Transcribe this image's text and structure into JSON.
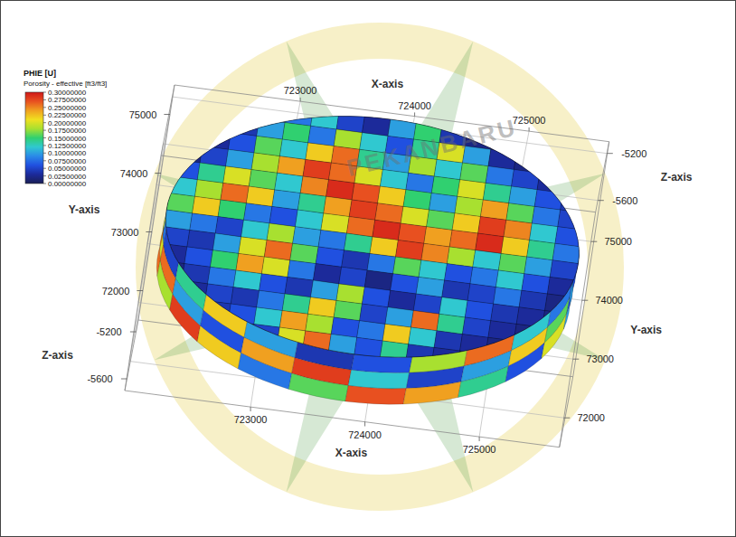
{
  "chart_data": {
    "type": "3d_grid",
    "title": "PHIE [U]",
    "subtitle": "Porosity - effective [ft3/ft3]",
    "x_label": "X-axis",
    "y_label": "Y-axis",
    "z_label": "Z-axis",
    "xlim": [
      721900,
      725700
    ],
    "xticks": [
      723000,
      724000,
      725000
    ],
    "ylim": [
      71500,
      75500
    ],
    "yticks": [
      72000,
      73000,
      74000,
      75000
    ],
    "zlim": [
      -5700,
      -5100
    ],
    "zticks": [
      -5600,
      -5200
    ],
    "grid": true,
    "watermark": "PEKANBARU",
    "colorbar": {
      "range": [
        0,
        0.3
      ],
      "ticks": [
        {
          "value": 0.3,
          "label": "0.30000000"
        },
        {
          "value": 0.275,
          "label": "0.27500000"
        },
        {
          "value": 0.25,
          "label": "0.25000000"
        },
        {
          "value": 0.225,
          "label": "0.22500000"
        },
        {
          "value": 0.2,
          "label": "0.20000000"
        },
        {
          "value": 0.175,
          "label": "0.17500000"
        },
        {
          "value": 0.15,
          "label": "0.15000000"
        },
        {
          "value": 0.125,
          "label": "0.12500000"
        },
        {
          "value": 0.1,
          "label": "0.10000000"
        },
        {
          "value": 0.075,
          "label": "0.07500000"
        },
        {
          "value": 0.05,
          "label": "0.05000000"
        },
        {
          "value": 0.025,
          "label": "0.02500000"
        },
        {
          "value": 0,
          "label": "0.00000000"
        }
      ],
      "colors": [
        "#1a1f55",
        "#1c2a9a",
        "#2050e0",
        "#2a8ae8",
        "#30c8d0",
        "#30d070",
        "#a8e030",
        "#f0e020",
        "#f0a020",
        "#e85020",
        "#d01818"
      ]
    },
    "grid_extent": {
      "x": [
        722000,
        725600
      ],
      "y": [
        71600,
        75600
      ]
    },
    "body_z": [
      -5600,
      -5200
    ],
    "cells": [
      [
        null,
        null,
        null,
        null,
        0.08,
        0.12,
        0.05,
        0.03,
        0.1,
        0.15,
        0.04,
        0.02,
        null,
        null,
        null,
        null
      ],
      [
        null,
        null,
        0.04,
        0.1,
        0.15,
        0.08,
        0.18,
        0.12,
        0.06,
        0.14,
        0.2,
        0.1,
        0.03,
        0.02,
        null,
        null
      ],
      [
        null,
        0.03,
        0.06,
        0.16,
        0.12,
        0.22,
        0.26,
        0.14,
        0.1,
        0.18,
        0.12,
        0.16,
        0.08,
        0.05,
        0.03,
        null
      ],
      [
        0.02,
        0.05,
        0.1,
        0.18,
        0.24,
        0.28,
        0.26,
        0.2,
        0.12,
        0.08,
        0.15,
        0.2,
        0.14,
        0.1,
        0.06,
        0.04
      ],
      [
        0.06,
        0.14,
        0.2,
        0.16,
        0.12,
        0.25,
        0.29,
        0.27,
        0.22,
        0.15,
        0.1,
        0.18,
        0.24,
        0.16,
        0.08,
        0.05
      ],
      [
        0.12,
        0.18,
        0.26,
        0.22,
        0.1,
        0.14,
        0.24,
        0.28,
        0.26,
        0.2,
        0.16,
        0.22,
        0.28,
        0.25,
        0.12,
        0.06
      ],
      [
        0.16,
        0.22,
        0.15,
        0.08,
        0.06,
        0.12,
        0.2,
        0.26,
        0.29,
        0.27,
        0.24,
        0.26,
        0.29,
        0.22,
        0.14,
        0.08
      ],
      [
        0.1,
        0.08,
        0.05,
        0.12,
        0.18,
        0.1,
        0.08,
        0.14,
        0.22,
        0.28,
        0.25,
        0.18,
        0.12,
        0.16,
        0.1,
        0.05
      ],
      [
        0.05,
        0.04,
        0.1,
        0.2,
        0.26,
        0.16,
        0.06,
        0.04,
        0.08,
        0.16,
        0.12,
        0.06,
        0.08,
        0.12,
        0.06,
        0.03
      ],
      [
        0.03,
        0.06,
        0.15,
        0.24,
        0.2,
        0.08,
        0.03,
        0.05,
        0.02,
        0.06,
        0.1,
        0.04,
        0.05,
        0.08,
        0.04,
        0.02
      ],
      [
        0.02,
        0.04,
        0.08,
        0.12,
        0.06,
        0.04,
        0.1,
        0.18,
        0.06,
        0.03,
        0.05,
        0.12,
        0.06,
        0.04,
        0.03,
        0.02
      ],
      [
        null,
        0.03,
        0.05,
        0.04,
        0.08,
        0.14,
        0.22,
        0.16,
        0.05,
        0.1,
        0.26,
        0.14,
        0.05,
        0.03,
        0.02,
        null
      ],
      [
        null,
        null,
        0.04,
        0.06,
        0.12,
        0.24,
        0.18,
        0.06,
        0.08,
        0.22,
        0.12,
        0.04,
        0.03,
        0.02,
        null,
        null
      ],
      [
        null,
        null,
        null,
        null,
        0.05,
        0.2,
        0.26,
        0.1,
        0.06,
        0.14,
        0.04,
        0.03,
        null,
        null,
        null,
        null
      ]
    ],
    "wall_cells": [
      [
        0.08,
        0.05,
        0.14,
        0.22,
        0.1,
        0.04,
        0.06,
        0.18,
        0.26,
        0.12,
        0.08,
        0.05
      ],
      [
        0.2,
        0.26,
        0.1,
        0.06,
        0.24,
        0.28,
        0.12,
        0.05,
        0.1,
        0.22,
        0.16,
        0.06
      ],
      [
        0.26,
        0.18,
        0.28,
        0.22,
        0.08,
        0.16,
        0.27,
        0.24,
        0.14,
        0.06,
        0.2,
        0.1
      ]
    ]
  }
}
